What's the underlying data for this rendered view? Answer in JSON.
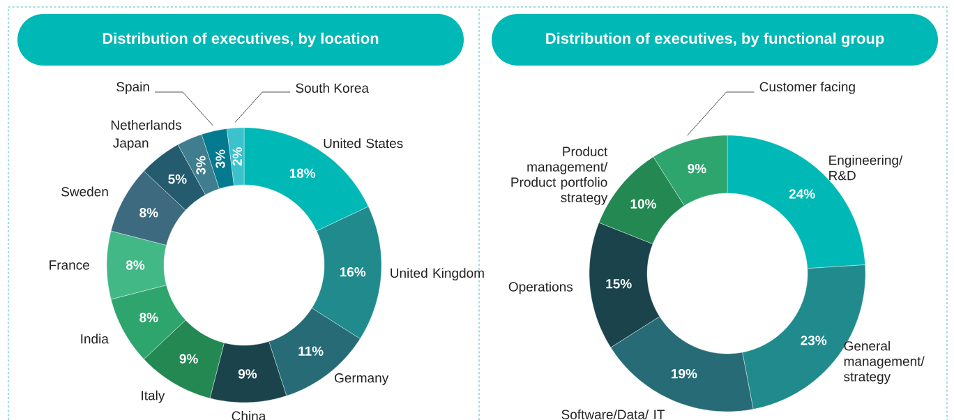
{
  "chart_data": [
    {
      "type": "donut",
      "title": "Distribution of executives, by location",
      "categories": [
        "United States",
        "United Kingdom",
        "Germany",
        "China",
        "Italy",
        "India",
        "France",
        "Sweden",
        "Japan",
        "Netherlands",
        "Spain",
        "South Korea"
      ],
      "values": [
        18,
        16,
        11,
        9,
        9,
        8,
        8,
        8,
        5,
        3,
        3,
        2
      ],
      "value_labels": [
        "18%",
        "16%",
        "11%",
        "9%",
        "9%",
        "8%",
        "8%",
        "8%",
        "5%",
        "3%",
        "3%",
        "2%"
      ],
      "colors": [
        "#00b8b5",
        "#208a8c",
        "#266b75",
        "#1b434b",
        "#238852",
        "#2fa56e",
        "#42b887",
        "#3d6a7e",
        "#245b6f",
        "#3f7e8e",
        "#037a8f",
        "#3bc2cd"
      ]
    },
    {
      "type": "donut",
      "title": "Distribution of executives, by functional group",
      "categories": [
        "Engineering/ R&D",
        "General management/ strategy",
        "Software/Data/ IT",
        "Operations",
        "Product management/ Product portfolio strategy",
        "Customer facing"
      ],
      "values": [
        24,
        23,
        19,
        15,
        10,
        9
      ],
      "value_labels": [
        "24%",
        "23%",
        "19%",
        "15%",
        "10%",
        "9%"
      ],
      "colors": [
        "#00b8b5",
        "#208a8c",
        "#266b75",
        "#1b434b",
        "#238852",
        "#2fa56e"
      ]
    }
  ]
}
